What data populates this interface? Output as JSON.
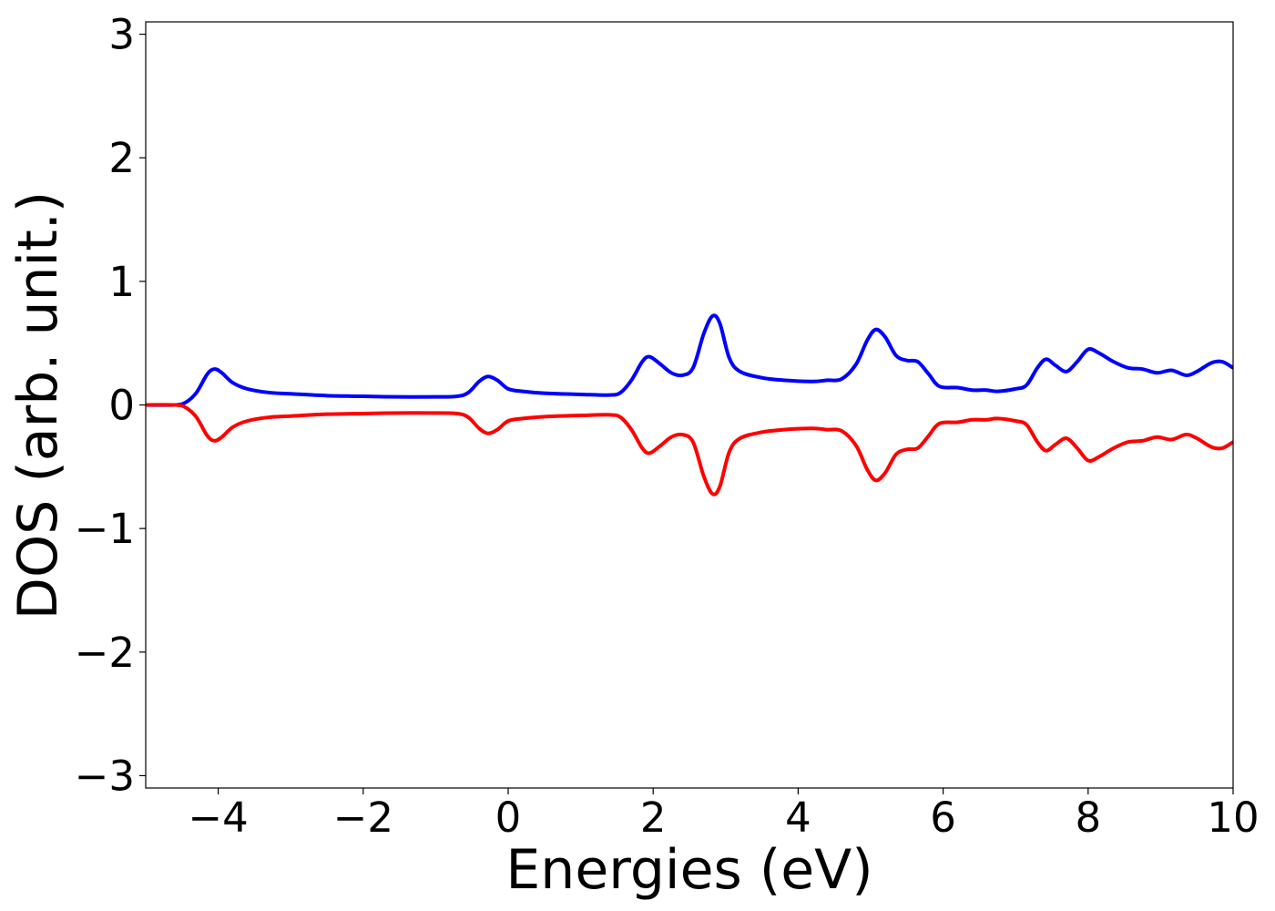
{
  "chart_data": {
    "type": "line",
    "title": "",
    "xlabel": "Energies (eV)",
    "ylabel": "DOS (arb. unit.)",
    "xlim": [
      -5,
      10
    ],
    "ylim": [
      -3.1,
      3.1
    ],
    "xticks": [
      -4,
      -2,
      0,
      2,
      4,
      6,
      8,
      10
    ],
    "xtick_labels": [
      "−4",
      "−2",
      "0",
      "2",
      "4",
      "6",
      "8",
      "10"
    ],
    "yticks": [
      -3,
      -2,
      -1,
      0,
      1,
      2,
      3
    ],
    "ytick_labels": [
      "−3",
      "−2",
      "−1",
      "0",
      "1",
      "2",
      "3"
    ],
    "grid": false,
    "legend": "none",
    "series": [
      {
        "color": "#0000ff",
        "points": [
          [
            -5.0,
            0.0
          ],
          [
            -4.6,
            0.0
          ],
          [
            -4.45,
            0.02
          ],
          [
            -4.3,
            0.1
          ],
          [
            -4.15,
            0.25
          ],
          [
            -4.05,
            0.29
          ],
          [
            -3.95,
            0.26
          ],
          [
            -3.8,
            0.18
          ],
          [
            -3.6,
            0.13
          ],
          [
            -3.3,
            0.1
          ],
          [
            -3.0,
            0.09
          ],
          [
            -2.5,
            0.075
          ],
          [
            -2.0,
            0.07
          ],
          [
            -1.5,
            0.065
          ],
          [
            -1.0,
            0.065
          ],
          [
            -0.7,
            0.07
          ],
          [
            -0.55,
            0.1
          ],
          [
            -0.4,
            0.19
          ],
          [
            -0.28,
            0.23
          ],
          [
            -0.15,
            0.2
          ],
          [
            0.0,
            0.13
          ],
          [
            0.2,
            0.11
          ],
          [
            0.5,
            0.095
          ],
          [
            1.0,
            0.085
          ],
          [
            1.4,
            0.08
          ],
          [
            1.55,
            0.1
          ],
          [
            1.7,
            0.2
          ],
          [
            1.85,
            0.35
          ],
          [
            1.95,
            0.39
          ],
          [
            2.1,
            0.33
          ],
          [
            2.25,
            0.26
          ],
          [
            2.4,
            0.24
          ],
          [
            2.55,
            0.3
          ],
          [
            2.7,
            0.58
          ],
          [
            2.82,
            0.72
          ],
          [
            2.92,
            0.66
          ],
          [
            3.05,
            0.38
          ],
          [
            3.2,
            0.27
          ],
          [
            3.5,
            0.22
          ],
          [
            3.8,
            0.2
          ],
          [
            4.2,
            0.19
          ],
          [
            4.4,
            0.2
          ],
          [
            4.6,
            0.21
          ],
          [
            4.8,
            0.33
          ],
          [
            4.95,
            0.52
          ],
          [
            5.07,
            0.61
          ],
          [
            5.2,
            0.55
          ],
          [
            5.35,
            0.4
          ],
          [
            5.5,
            0.36
          ],
          [
            5.65,
            0.35
          ],
          [
            5.8,
            0.25
          ],
          [
            5.95,
            0.15
          ],
          [
            6.2,
            0.14
          ],
          [
            6.4,
            0.12
          ],
          [
            6.6,
            0.12
          ],
          [
            6.75,
            0.11
          ],
          [
            7.0,
            0.13
          ],
          [
            7.15,
            0.16
          ],
          [
            7.3,
            0.3
          ],
          [
            7.42,
            0.37
          ],
          [
            7.55,
            0.32
          ],
          [
            7.7,
            0.27
          ],
          [
            7.85,
            0.35
          ],
          [
            8.0,
            0.45
          ],
          [
            8.15,
            0.42
          ],
          [
            8.35,
            0.35
          ],
          [
            8.55,
            0.3
          ],
          [
            8.75,
            0.29
          ],
          [
            8.95,
            0.26
          ],
          [
            9.15,
            0.28
          ],
          [
            9.35,
            0.24
          ],
          [
            9.5,
            0.27
          ],
          [
            9.7,
            0.34
          ],
          [
            9.85,
            0.35
          ],
          [
            10.0,
            0.3
          ]
        ]
      },
      {
        "color": "#ff0000",
        "points": [
          [
            -5.0,
            0.0
          ],
          [
            -4.6,
            0.0
          ],
          [
            -4.45,
            -0.02
          ],
          [
            -4.3,
            -0.1
          ],
          [
            -4.15,
            -0.25
          ],
          [
            -4.05,
            -0.29
          ],
          [
            -3.95,
            -0.26
          ],
          [
            -3.8,
            -0.18
          ],
          [
            -3.6,
            -0.13
          ],
          [
            -3.3,
            -0.1
          ],
          [
            -3.0,
            -0.09
          ],
          [
            -2.5,
            -0.075
          ],
          [
            -2.0,
            -0.07
          ],
          [
            -1.5,
            -0.065
          ],
          [
            -1.0,
            -0.065
          ],
          [
            -0.7,
            -0.07
          ],
          [
            -0.55,
            -0.1
          ],
          [
            -0.4,
            -0.19
          ],
          [
            -0.28,
            -0.23
          ],
          [
            -0.15,
            -0.2
          ],
          [
            0.0,
            -0.13
          ],
          [
            0.2,
            -0.11
          ],
          [
            0.5,
            -0.095
          ],
          [
            1.0,
            -0.085
          ],
          [
            1.4,
            -0.08
          ],
          [
            1.55,
            -0.1
          ],
          [
            1.7,
            -0.2
          ],
          [
            1.85,
            -0.35
          ],
          [
            1.95,
            -0.39
          ],
          [
            2.1,
            -0.33
          ],
          [
            2.25,
            -0.26
          ],
          [
            2.4,
            -0.24
          ],
          [
            2.55,
            -0.3
          ],
          [
            2.7,
            -0.58
          ],
          [
            2.82,
            -0.72
          ],
          [
            2.92,
            -0.66
          ],
          [
            3.05,
            -0.38
          ],
          [
            3.2,
            -0.27
          ],
          [
            3.5,
            -0.22
          ],
          [
            3.8,
            -0.2
          ],
          [
            4.2,
            -0.19
          ],
          [
            4.4,
            -0.2
          ],
          [
            4.6,
            -0.21
          ],
          [
            4.8,
            -0.33
          ],
          [
            4.95,
            -0.52
          ],
          [
            5.07,
            -0.61
          ],
          [
            5.2,
            -0.55
          ],
          [
            5.35,
            -0.4
          ],
          [
            5.5,
            -0.36
          ],
          [
            5.65,
            -0.35
          ],
          [
            5.8,
            -0.25
          ],
          [
            5.95,
            -0.15
          ],
          [
            6.2,
            -0.14
          ],
          [
            6.4,
            -0.12
          ],
          [
            6.6,
            -0.12
          ],
          [
            6.75,
            -0.11
          ],
          [
            7.0,
            -0.13
          ],
          [
            7.15,
            -0.16
          ],
          [
            7.3,
            -0.3
          ],
          [
            7.42,
            -0.37
          ],
          [
            7.55,
            -0.32
          ],
          [
            7.7,
            -0.27
          ],
          [
            7.85,
            -0.35
          ],
          [
            8.0,
            -0.45
          ],
          [
            8.15,
            -0.42
          ],
          [
            8.35,
            -0.35
          ],
          [
            8.55,
            -0.3
          ],
          [
            8.75,
            -0.29
          ],
          [
            8.95,
            -0.26
          ],
          [
            9.15,
            -0.28
          ],
          [
            9.35,
            -0.24
          ],
          [
            9.5,
            -0.27
          ],
          [
            9.7,
            -0.34
          ],
          [
            9.85,
            -0.35
          ],
          [
            10.0,
            -0.3
          ]
        ]
      }
    ]
  }
}
